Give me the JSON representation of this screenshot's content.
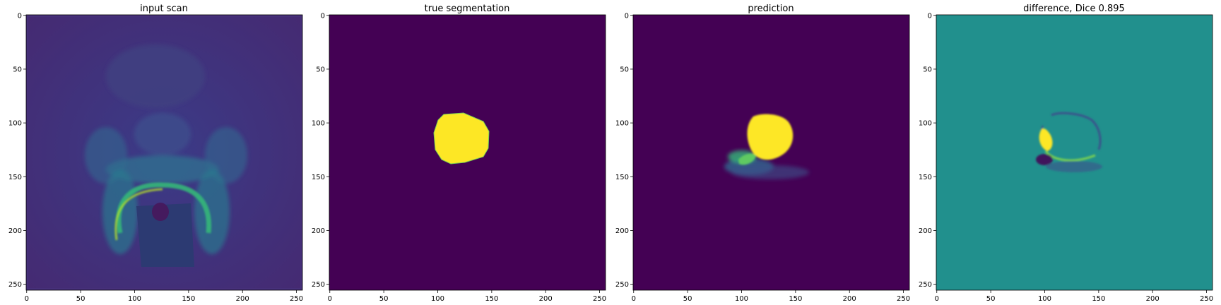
{
  "figure": {
    "panels": [
      {
        "title": "input scan",
        "kind": "mri",
        "grid_size": 256
      },
      {
        "title": "true segmentation",
        "kind": "truth",
        "grid_size": 256
      },
      {
        "title": "prediction",
        "kind": "prediction",
        "grid_size": 256
      },
      {
        "title": "difference, Dice 0.895",
        "kind": "difference",
        "grid_size": 256
      }
    ],
    "x_ticks": [
      0,
      50,
      100,
      150,
      200,
      250
    ],
    "y_ticks": [
      0,
      50,
      100,
      150,
      200,
      250
    ],
    "colormap": "viridis",
    "colors": {
      "background_purple": "#440154",
      "mid_teal": "#21908d",
      "yellow": "#fde725",
      "green": "#5ec962",
      "blue": "#3b528b"
    }
  }
}
